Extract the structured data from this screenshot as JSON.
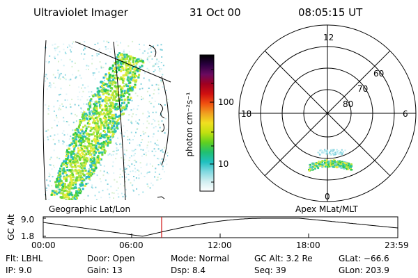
{
  "header": {
    "instrument": "Ultraviolet Imager",
    "date": "31 Oct 00",
    "time": "08:05:15 UT"
  },
  "colorbar": {
    "unit_label": "photon cm⁻²s⁻¹",
    "tick_labels": [
      "100",
      "10"
    ],
    "colors": [
      "#000000",
      "#2a0040",
      "#6a0a60",
      "#a00020",
      "#d01010",
      "#f05010",
      "#f0a020",
      "#f0e020",
      "#c0e010",
      "#60d020",
      "#20c070",
      "#20c0c0",
      "#80d8e0",
      "#d0eef0",
      "#ffffff"
    ]
  },
  "left_panel": {
    "label": "Geographic Lat/Lon",
    "aurora_color": "#2ec84a"
  },
  "right_panel": {
    "label": "Apex MLat/MLT",
    "mlt_labels": {
      "top": "12",
      "left": "18",
      "right": "6",
      "bottom": "0"
    },
    "lat_labels": [
      "60",
      "70",
      "80"
    ]
  },
  "altitude_plot": {
    "ylabel": "GC Alt",
    "y_ticks": [
      "9.0",
      "1.8"
    ],
    "x_ticks": [
      "00:00",
      "06:00",
      "12:00",
      "18:00",
      "23:59"
    ],
    "marker_color": "#d01010"
  },
  "footer": {
    "flt": "Flt: LBHL",
    "ip": "IP:  9.0",
    "door": "Door: Open",
    "gain": "Gain: 13",
    "mode": "Mode: Normal",
    "dsp": "Dsp:     8.4",
    "gcalt": "GC Alt: 3.2 Re",
    "seq": "Seq: 39",
    "glat": "GLat: −66.6",
    "glon": "GLon: 203.9"
  }
}
